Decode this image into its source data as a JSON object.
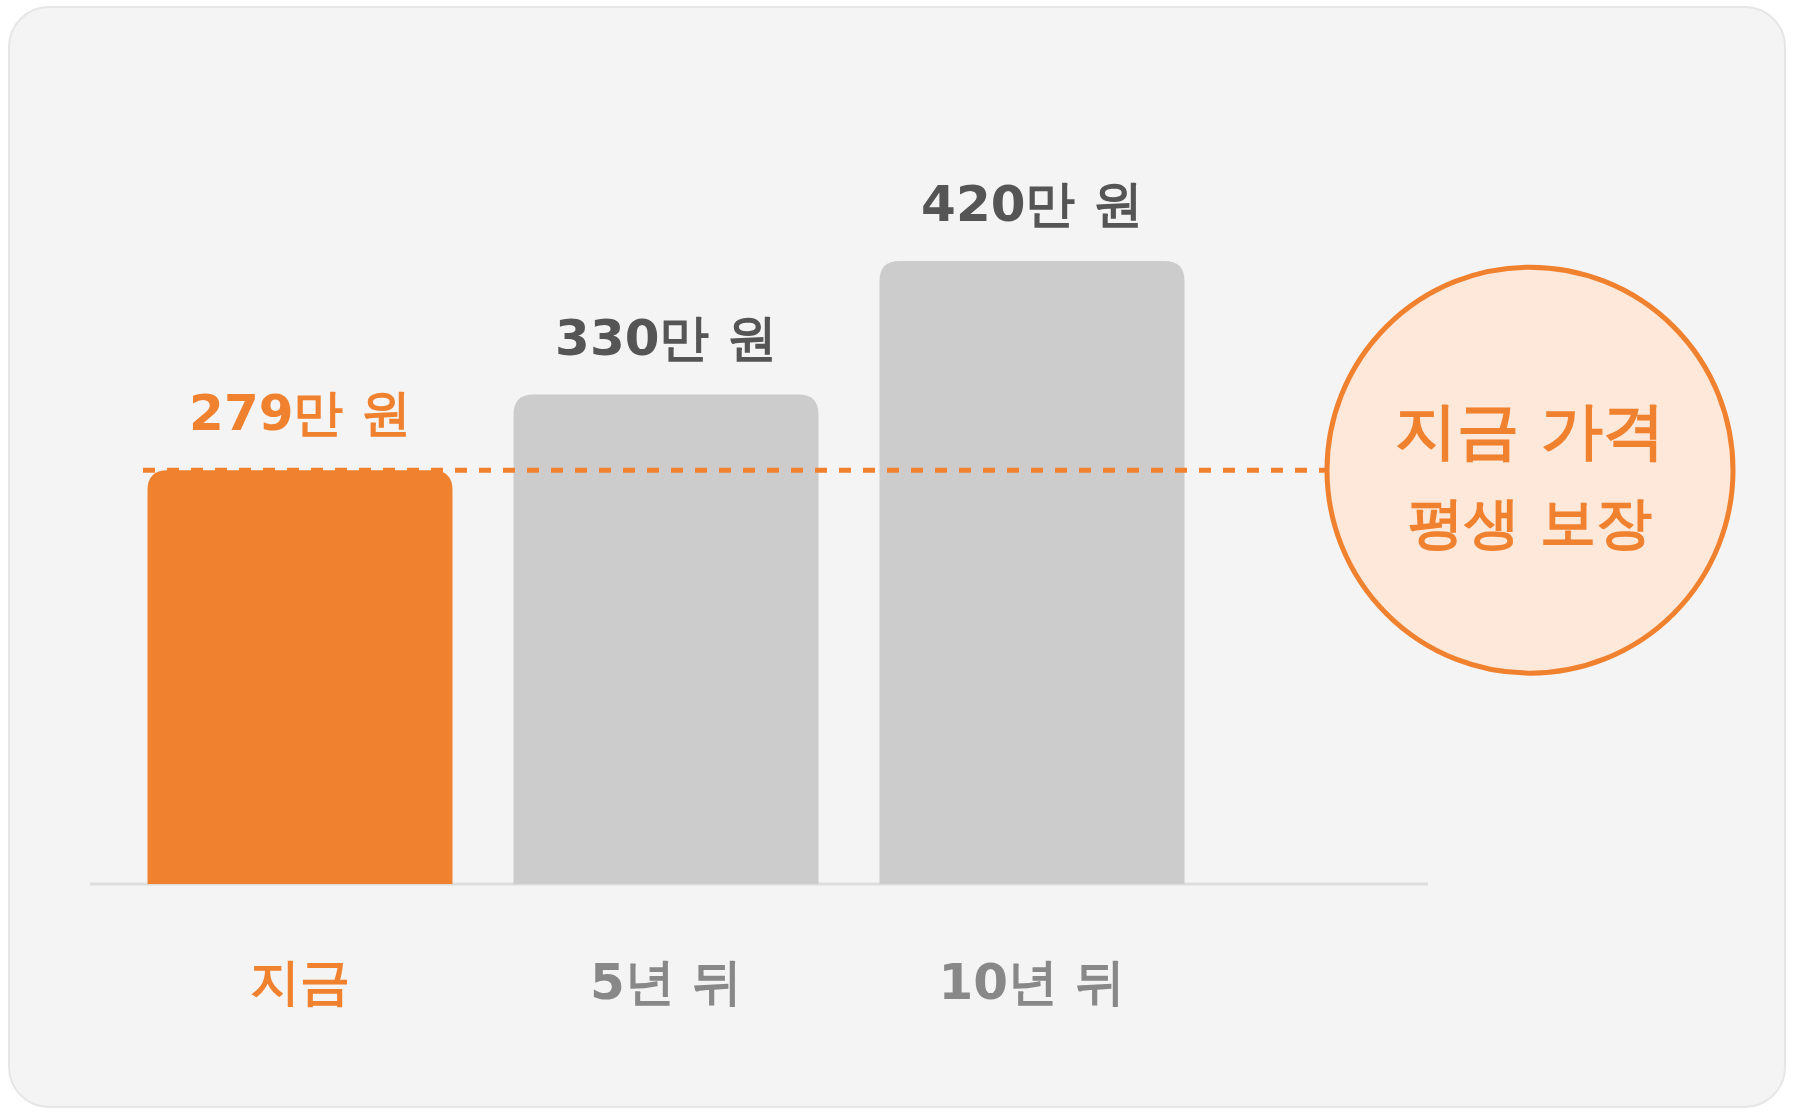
{
  "chart_data": {
    "type": "bar",
    "categories": [
      "지금",
      "5년 뒤",
      "10년 뒤"
    ],
    "values": [
      279,
      330,
      420
    ],
    "colors": [
      "#f0812f",
      "#cccccc",
      "#cccccc"
    ],
    "value_labels": [
      "279만 원",
      "330만 원",
      "420만 원"
    ],
    "ref_lines": [
      {
        "axis": "y",
        "value": 279,
        "label": "지금 가격 평생 보장",
        "color": "#f0812f",
        "line_style": "dashed"
      }
    ]
  }
}
